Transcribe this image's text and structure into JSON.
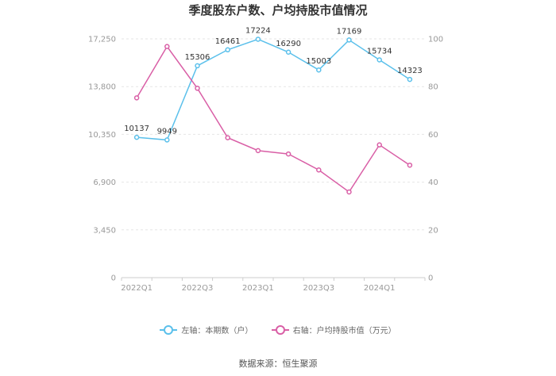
{
  "chart_data": {
    "type": "line",
    "title": "季度股东户数、户均持股市值情况",
    "source": "数据来源：恒生聚源",
    "categories": [
      "2022Q1",
      "2022Q2",
      "2022Q3",
      "2022Q4",
      "2023Q1",
      "2023Q2",
      "2023Q3",
      "2023Q4",
      "2024Q1",
      "2024Q2"
    ],
    "x_tick_labels": [
      "2022Q1",
      "2022Q3",
      "2023Q1",
      "2023Q3",
      "2024Q1"
    ],
    "left_axis": {
      "min": 0,
      "max": 17250,
      "ticks": [
        "0",
        "3,450",
        "6,900",
        "10,350",
        "13,800",
        "17,250"
      ]
    },
    "right_axis": {
      "min": 0,
      "max": 100,
      "ticks": [
        "0",
        "20",
        "40",
        "60",
        "80",
        "100"
      ]
    },
    "series": [
      {
        "name": "左轴：本期数（户）",
        "axis": "left",
        "color": "#5bc0eb",
        "values": [
          10137,
          9949,
          15306,
          16461,
          17224,
          16290,
          15003,
          17169,
          15734,
          14323
        ],
        "labels": [
          "10137",
          "9949",
          "15306",
          "16461",
          "17224",
          "16290",
          "15003",
          "17169",
          "15734",
          "14323"
        ]
      },
      {
        "name": "右轴：户均持股市值（万元）",
        "axis": "right",
        "color": "#d95fa6",
        "values": [
          75.3,
          96.8,
          79.3,
          58.6,
          53.2,
          51.8,
          45.1,
          35.9,
          55.6,
          47.1
        ]
      }
    ],
    "grid": "horizontal",
    "legend_position": "bottom"
  }
}
